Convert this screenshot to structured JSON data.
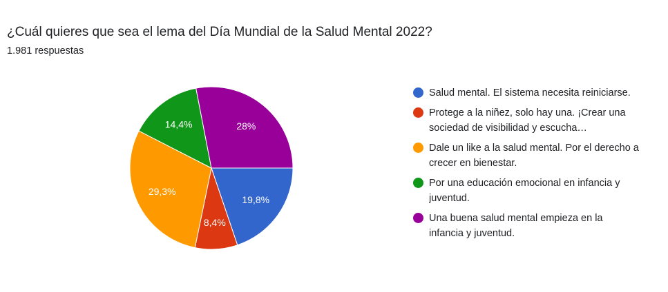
{
  "chart_data": {
    "type": "pie",
    "title": "¿Cuál quieres que sea el lema del Día Mundial de la Salud Mental 2022?",
    "subtitle": "1.981 respuestas",
    "legend_position": "right",
    "slices": [
      {
        "label": "Salud mental. El sistema necesita reiniciarse.",
        "value": 19.8,
        "display": "19,8%",
        "color": "#3366cc"
      },
      {
        "label": "Protege a la niñez, solo hay una. ¡Crear una sociedad de visibilidad y escucha…",
        "value": 8.4,
        "display": "8,4%",
        "color": "#dc3912"
      },
      {
        "label": "Dale un like a la salud mental. Por el derecho a crecer en bienestar.",
        "value": 29.3,
        "display": "29,3%",
        "color": "#ff9900"
      },
      {
        "label": "Por una educación emocional en infancia y juventud.",
        "value": 14.4,
        "display": "14,4%",
        "color": "#109618"
      },
      {
        "label": "Una buena salud mental empieza en la infancia y juventud.",
        "value": 28,
        "display": "28%",
        "color": "#990099"
      }
    ]
  }
}
